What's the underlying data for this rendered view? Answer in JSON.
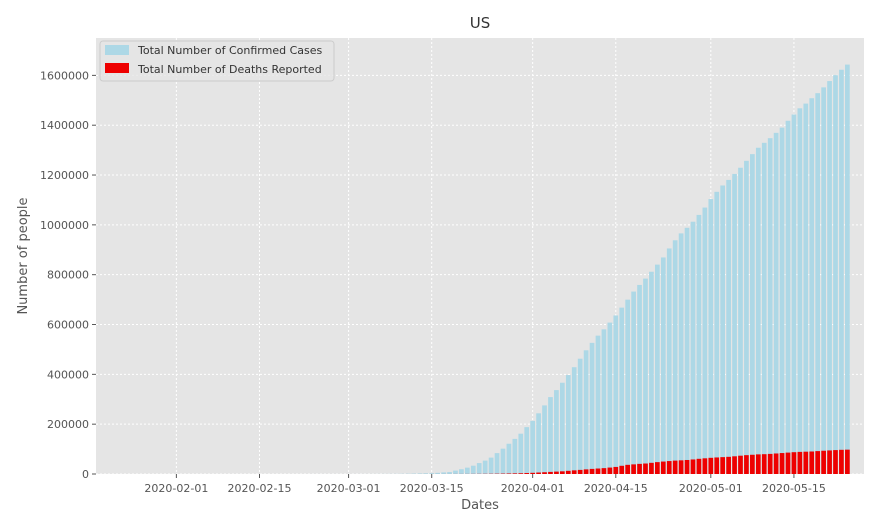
{
  "chart_data": {
    "type": "bar",
    "title": "US",
    "xlabel": "Dates",
    "ylabel": "Number of people",
    "x": {
      "start": "2020-01-22",
      "end": "2020-05-24",
      "ticks": [
        "2020-02-01",
        "2020-02-15",
        "2020-03-01",
        "2020-03-15",
        "2020-04-01",
        "2020-04-15",
        "2020-05-01",
        "2020-05-15"
      ]
    },
    "ylim": [
      0,
      1750000
    ],
    "yticks": [
      0,
      200000,
      400000,
      600000,
      800000,
      1000000,
      1200000,
      1400000,
      1600000
    ],
    "ytick_labels": [
      "0",
      "200000",
      "400000",
      "600000",
      "800000",
      "1000000",
      "1200000",
      "1400000",
      "1600000"
    ],
    "grid": true,
    "legend_position": "top-left",
    "series": [
      {
        "name": "Total Number of Confirmed Cases",
        "color": "#add8e6",
        "values": [
          1,
          1,
          2,
          2,
          5,
          5,
          5,
          6,
          6,
          8,
          8,
          8,
          11,
          11,
          11,
          12,
          12,
          12,
          12,
          12,
          13,
          13,
          15,
          15,
          15,
          15,
          15,
          15,
          15,
          25,
          25,
          25,
          25,
          53,
          53,
          59,
          60,
          62,
          70,
          76,
          101,
          122,
          153,
          221,
          278,
          417,
          537,
          605,
          959,
          1281,
          1663,
          2179,
          2727,
          3499,
          4632,
          6421,
          7786,
          13680,
          19101,
          25493,
          33276,
          43847,
          53740,
          65778,
          83836,
          101657,
          121465,
          140909,
          161831,
          188172,
          213242,
          243622,
          275367,
          308650,
          336802,
          366317,
          397121,
          428654,
          462780,
          496535,
          526396,
          555313,
          580619,
          607670,
          636350,
          667801,
          699706,
          732197,
          758809,
          784326,
          811865,
          840351,
          869170,
          905358,
          938154,
          965785,
          988197,
          1012582,
          1039909,
          1069424,
          1103461,
          1132539,
          1158040,
          1180375,
          1204351,
          1229331,
          1257023,
          1283929,
          1309550,
          1329260,
          1347881,
          1369376,
          1390406,
          1417774,
          1442824,
          1467820,
          1486757,
          1508308,
          1528568,
          1551853,
          1577147,
          1600937,
          1622612,
          1643246,
          1666828
        ]
      },
      {
        "name": "Total Number of Deaths Reported",
        "color": "#ee0000",
        "values": [
          0,
          0,
          0,
          0,
          0,
          0,
          0,
          0,
          0,
          0,
          0,
          0,
          0,
          0,
          0,
          0,
          0,
          0,
          0,
          0,
          0,
          0,
          0,
          0,
          0,
          0,
          0,
          0,
          0,
          0,
          0,
          0,
          0,
          0,
          0,
          0,
          0,
          0,
          1,
          1,
          6,
          7,
          11,
          12,
          14,
          17,
          21,
          22,
          28,
          36,
          40,
          47,
          54,
          63,
          85,
          108,
          118,
          200,
          244,
          307,
          427,
          552,
          706,
          942,
          1209,
          1581,
          2026,
          2467,
          2978,
          3873,
          4757,
          5926,
          7087,
          8407,
          9619,
          10783,
          12722,
          14695,
          16478,
          18586,
          20463,
          22020,
          23529,
          25832,
          28325,
          32916,
          36773,
          38664,
          40661,
          42094,
          44845,
          47659,
          49954,
          51949,
          53755,
          54881,
          56219,
          58355,
          60967,
          62996,
          64943,
          66369,
          67682,
          68922,
          71064,
          73455,
          75662,
          77180,
          78795,
          79526,
          80682,
          82356,
          84119,
          85898,
          87530,
          88754,
          89562,
          90347,
          91921,
          93439,
          94702,
          95979,
          97087,
          97720,
          98223
        ]
      }
    ]
  }
}
